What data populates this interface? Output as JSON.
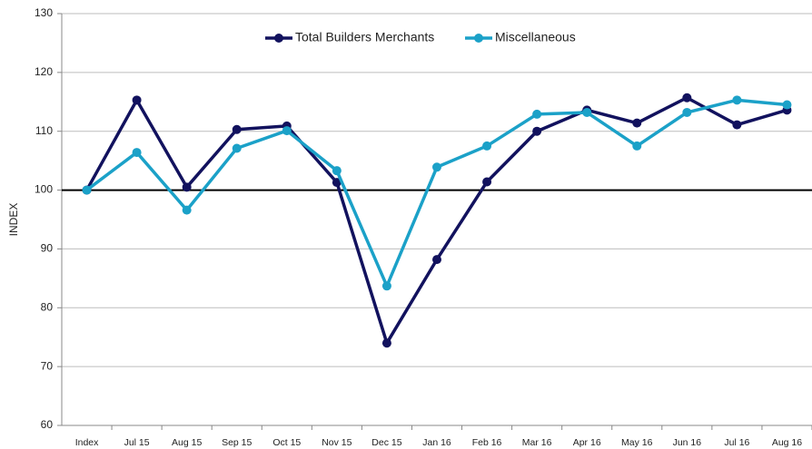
{
  "chart_data": {
    "type": "line",
    "y_label": "INDEX",
    "categories": [
      "Index",
      "Jul 15",
      "Aug 15",
      "Sep 15",
      "Oct 15",
      "Nov 15",
      "Dec 15",
      "Jan 16",
      "Feb 16",
      "Mar 16",
      "Apr 16",
      "May 16",
      "Jun 16",
      "Jul 16",
      "Aug 16"
    ],
    "series": [
      {
        "name": "Total Builders Merchants",
        "color": "#12125e",
        "values": [
          100,
          115.3,
          100.5,
          110.3,
          110.9,
          101.3,
          74,
          88.2,
          101.4,
          110,
          113.6,
          111.4,
          115.7,
          111.1,
          113.6
        ]
      },
      {
        "name": "Miscellaneous",
        "color": "#1ba1c8",
        "values": [
          100,
          106.4,
          96.6,
          107.1,
          110.1,
          103.3,
          83.7,
          103.9,
          107.5,
          112.9,
          113.2,
          107.5,
          113.2,
          115.3,
          114.5
        ]
      }
    ],
    "ylim": [
      60,
      130
    ],
    "yticks": [
      60,
      70,
      80,
      90,
      100,
      110,
      120,
      130
    ],
    "grid": true,
    "reference_line": 100,
    "legend": "top"
  }
}
